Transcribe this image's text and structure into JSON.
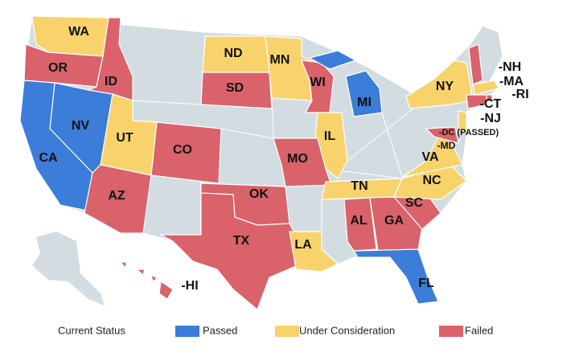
{
  "states": [
    {
      "label": "WA",
      "status": "Under Consideration"
    },
    {
      "label": "OR",
      "status": "Failed"
    },
    {
      "label": "ID",
      "status": "Failed"
    },
    {
      "label": "NV",
      "status": "Passed"
    },
    {
      "label": "CA",
      "status": "Passed"
    },
    {
      "label": "UT",
      "status": "Under Consideration"
    },
    {
      "label": "AZ",
      "status": "Failed"
    },
    {
      "label": "CO",
      "status": "Failed"
    },
    {
      "label": "ND",
      "status": "Under Consideration"
    },
    {
      "label": "SD",
      "status": "Failed"
    },
    {
      "label": "MN",
      "status": "Under Consideration"
    },
    {
      "label": "WI",
      "status": "Failed"
    },
    {
      "label": "MI",
      "status": "Passed"
    },
    {
      "label": "IL",
      "status": "Under Consideration"
    },
    {
      "label": "MO",
      "status": "Failed"
    },
    {
      "label": "OK",
      "status": "Failed"
    },
    {
      "label": "TX",
      "status": "Failed"
    },
    {
      "label": "LA",
      "status": "Under Consideration"
    },
    {
      "label": "TN",
      "status": "Under Consideration"
    },
    {
      "label": "AL",
      "status": "Failed"
    },
    {
      "label": "GA",
      "status": "Failed"
    },
    {
      "label": "SC",
      "status": "Failed"
    },
    {
      "label": "FL",
      "status": "Passed"
    },
    {
      "label": "NC",
      "status": "Under Consideration"
    },
    {
      "label": "VA",
      "status": "Under Consideration"
    },
    {
      "label": "NY",
      "status": "Under Consideration"
    },
    {
      "label": "-NH",
      "status": "Failed"
    },
    {
      "label": "-MA",
      "status": "Under Consideration"
    },
    {
      "label": "-RI",
      "status": "Failed"
    },
    {
      "label": "-CT",
      "status": "Failed"
    },
    {
      "label": "-NJ",
      "status": "Under Consideration"
    },
    {
      "label": "-DC (PASSED)",
      "status": "Passed"
    },
    {
      "label": "-MD",
      "status": "Failed"
    },
    {
      "label": "-HI",
      "status": "Failed"
    }
  ],
  "legend": {
    "title": "Current Status",
    "items": [
      {
        "label": "Passed",
        "color": "#3b7dd8"
      },
      {
        "label": "Under Consideration",
        "color": "#f8d36c"
      },
      {
        "label": "Failed",
        "color": "#d9626b"
      }
    ]
  }
}
